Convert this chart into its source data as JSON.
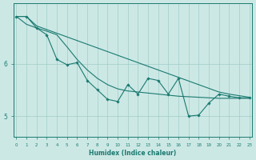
{
  "x": [
    0,
    1,
    2,
    3,
    4,
    5,
    6,
    7,
    8,
    9,
    10,
    11,
    12,
    13,
    14,
    15,
    16,
    17,
    18,
    19,
    20,
    21,
    22,
    23
  ],
  "y_straight": [
    6.9,
    6.9,
    6.72,
    6.65,
    6.58,
    6.51,
    6.44,
    6.37,
    6.3,
    6.23,
    6.16,
    6.09,
    6.02,
    5.95,
    5.88,
    5.81,
    5.74,
    5.67,
    5.6,
    5.53,
    5.46,
    5.42,
    5.39,
    5.36
  ],
  "y_smooth": [
    6.9,
    6.75,
    6.68,
    6.62,
    6.55,
    6.32,
    6.08,
    5.88,
    5.72,
    5.6,
    5.52,
    5.48,
    5.46,
    5.44,
    5.42,
    5.4,
    5.38,
    5.37,
    5.36,
    5.35,
    5.34,
    5.34,
    5.34,
    5.34
  ],
  "y_zigzag": [
    6.9,
    6.9,
    6.68,
    6.55,
    6.08,
    5.98,
    6.02,
    5.68,
    5.5,
    5.32,
    5.28,
    5.6,
    5.42,
    5.72,
    5.68,
    5.42,
    5.72,
    5.0,
    5.02,
    5.25,
    5.42,
    5.38,
    5.35,
    5.35
  ],
  "bg_color": "#cce8e5",
  "line_color": "#1a7a70",
  "grid_color": "#a0cdc8",
  "xlabel": "Humidex (Indice chaleur)",
  "ylim": [
    4.6,
    7.15
  ],
  "xlim": [
    -0.3,
    23.3
  ],
  "yticks": [
    5,
    6
  ],
  "xticks": [
    0,
    1,
    2,
    3,
    4,
    5,
    6,
    7,
    8,
    9,
    10,
    11,
    12,
    13,
    14,
    15,
    16,
    17,
    18,
    19,
    20,
    21,
    22,
    23
  ]
}
